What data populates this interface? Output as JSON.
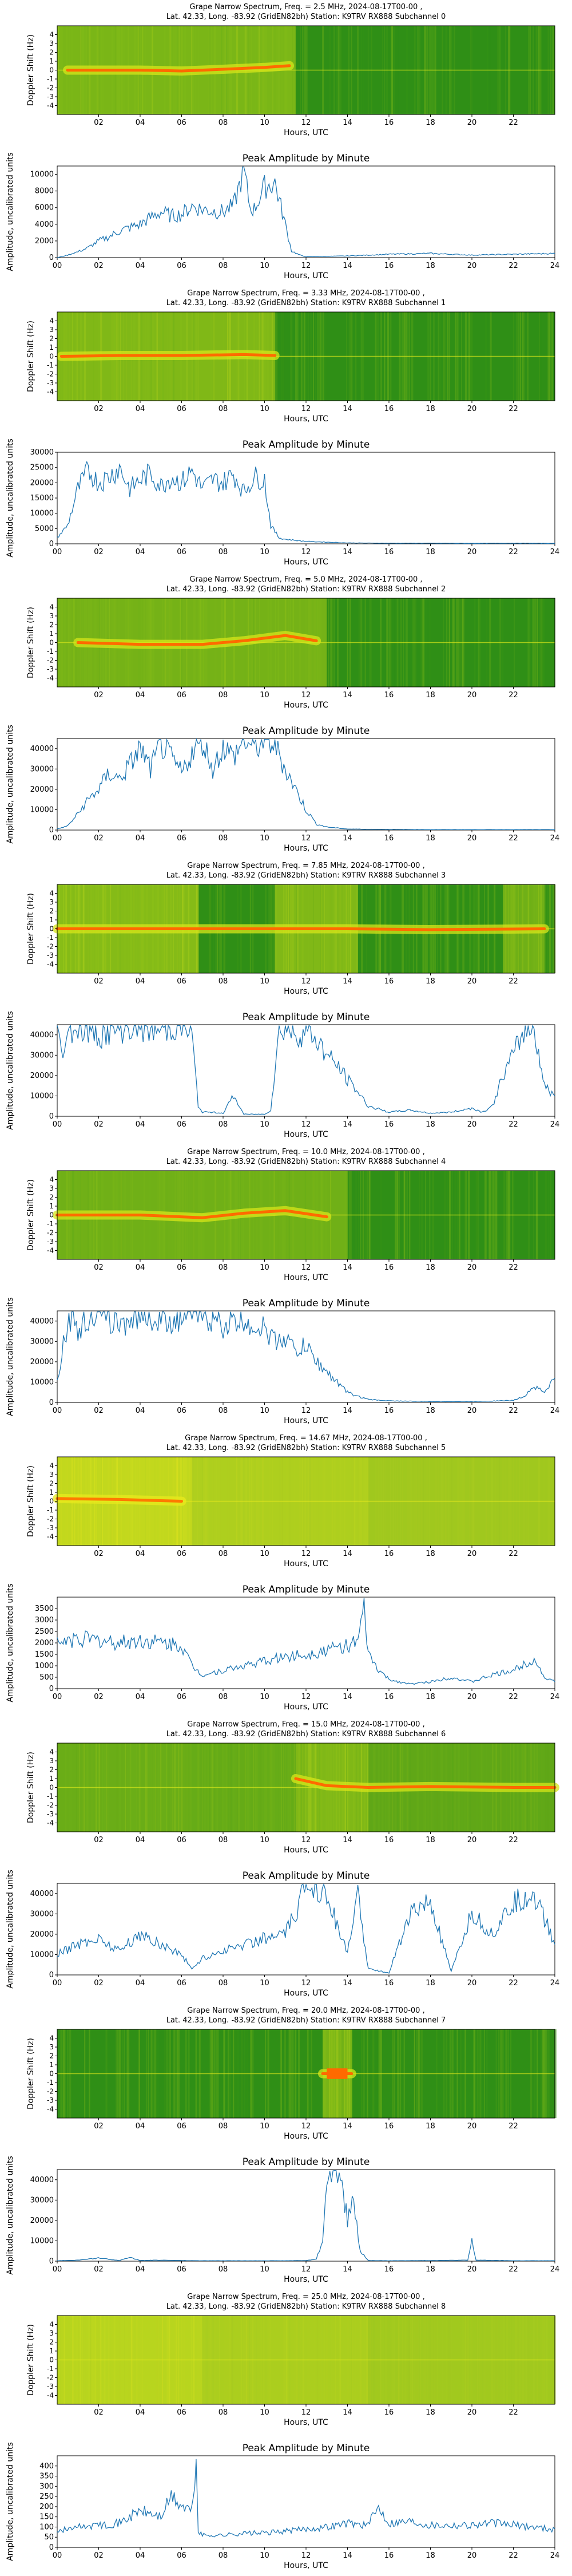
{
  "page": {
    "title_line2": "Lat.  42.33, Long. -83.92 (GridEN82bh) Station: K9TRV RX888 Subchannel",
    "spectrum_ylabel": "Doppler Shift (Hz)",
    "spectrum_xlabel": "Hours, UTC",
    "amp_title": "Peak Amplitude by Minute",
    "amp_ylabel": "Amplitude, uncalibrated units",
    "amp_xlabel": "Hours, UTC",
    "spectrum_xticks": [
      "02",
      "04",
      "06",
      "08",
      "10",
      "12",
      "14",
      "16",
      "18",
      "20",
      "22"
    ],
    "spectrum_yticks": [
      "4",
      "3",
      "2",
      "1",
      "0",
      "-1",
      "-2",
      "-3",
      "-4"
    ],
    "amp_xticks": [
      "00",
      "02",
      "04",
      "06",
      "08",
      "10",
      "12",
      "14",
      "16",
      "18",
      "20",
      "22",
      "24"
    ]
  },
  "channels": [
    {
      "title_line1": "Grape Narrow Spectrum, Freq. = 2.5 MHz, 2024-08-17T00-00 ,",
      "subchannel": "0",
      "colors": {
        "bg": "#2f8f16",
        "bright": "#d7e61a",
        "hot": "#ff6a00"
      },
      "spectrum": {
        "bands": [
          {
            "start": 0.0,
            "end": 11.5,
            "intensity": 0.7
          }
        ],
        "trace": [
          [
            0.5,
            0.0
          ],
          [
            2,
            0.0
          ],
          [
            4,
            0.0
          ],
          [
            6,
            -0.1
          ],
          [
            8,
            0.1
          ],
          [
            10,
            0.3
          ],
          [
            11.2,
            0.5
          ]
        ],
        "bright_blocks": []
      }
    },
    {
      "title_line1": "Grape Narrow Spectrum, Freq. = 3.33 MHz, 2024-08-17T00-00 ,",
      "subchannel": "1",
      "colors": {
        "bg": "#2f8f16",
        "bright": "#d7e61a",
        "hot": "#ff6a00"
      },
      "spectrum": {
        "bands": [
          {
            "start": 0.0,
            "end": 10.5,
            "intensity": 0.75
          }
        ],
        "trace": [
          [
            0.2,
            0.0
          ],
          [
            3,
            0.1
          ],
          [
            6,
            0.1
          ],
          [
            9,
            0.2
          ],
          [
            10.5,
            0.1
          ]
        ],
        "bright_blocks": []
      }
    },
    {
      "title_line1": "Grape Narrow Spectrum, Freq. = 5.0 MHz, 2024-08-17T00-00 ,",
      "subchannel": "2",
      "colors": {
        "bg": "#2f8f16",
        "bright": "#d7e61a",
        "hot": "#ff6a00"
      },
      "spectrum": {
        "bands": [
          {
            "start": 0.0,
            "end": 13.0,
            "intensity": 0.65
          }
        ],
        "trace": [
          [
            1,
            0.0
          ],
          [
            4,
            -0.2
          ],
          [
            7,
            -0.2
          ],
          [
            9,
            0.2
          ],
          [
            11,
            0.8
          ],
          [
            12.5,
            0.2
          ]
        ],
        "bright_blocks": []
      }
    },
    {
      "title_line1": "Grape Narrow Spectrum, Freq. = 7.85 MHz, 2024-08-17T00-00 ,",
      "subchannel": "3",
      "colors": {
        "bg": "#2f8f16",
        "bright": "#d7e61a",
        "hot": "#ff6a00"
      },
      "spectrum": {
        "bands": [
          {
            "start": 0.0,
            "end": 6.8,
            "intensity": 0.8
          },
          {
            "start": 10.5,
            "end": 14.5,
            "intensity": 0.75
          },
          {
            "start": 21.5,
            "end": 23.5,
            "intensity": 0.6
          }
        ],
        "trace": [
          [
            0,
            0.0
          ],
          [
            6.8,
            0.0
          ],
          [
            10.7,
            0.0
          ],
          [
            14,
            0.0
          ],
          [
            18,
            -0.1
          ],
          [
            23.5,
            0.0
          ]
        ],
        "bright_blocks": []
      }
    },
    {
      "title_line1": "Grape Narrow Spectrum, Freq. = 10.0 MHz, 2024-08-17T00-00 ,",
      "subchannel": "4",
      "colors": {
        "bg": "#2f8f16",
        "bright": "#d7e61a",
        "hot": "#ff6a00"
      },
      "spectrum": {
        "bands": [
          {
            "start": 0.0,
            "end": 14.0,
            "intensity": 0.6
          }
        ],
        "trace": [
          [
            0,
            0.0
          ],
          [
            4,
            0.0
          ],
          [
            7,
            -0.3
          ],
          [
            9,
            0.2
          ],
          [
            11,
            0.5
          ],
          [
            13,
            -0.2
          ]
        ],
        "bright_blocks": []
      }
    },
    {
      "title_line1": "Grape Narrow Spectrum, Freq. = 14.67 MHz, 2024-08-17T00-00 ,",
      "subchannel": "5",
      "colors": {
        "bg": "#8fbf20",
        "bright": "#e8ea1c",
        "hot": "#ff7a00"
      },
      "spectrum": {
        "bands": [
          {
            "start": 0.0,
            "end": 6.5,
            "intensity": 0.9
          },
          {
            "start": 6.5,
            "end": 15.0,
            "intensity": 0.55
          },
          {
            "start": 15.0,
            "end": 24.0,
            "intensity": 0.3
          }
        ],
        "trace": [
          [
            0,
            0.3
          ],
          [
            3,
            0.2
          ],
          [
            6,
            0.0
          ]
        ],
        "bright_blocks": []
      }
    },
    {
      "title_line1": "Grape Narrow Spectrum, Freq. = 15.0 MHz, 2024-08-17T00-00 ,",
      "subchannel": "6",
      "colors": {
        "bg": "#2f8f16",
        "bright": "#d7e61a",
        "hot": "#ff6a00"
      },
      "spectrum": {
        "bands": [
          {
            "start": 0.0,
            "end": 6.5,
            "intensity": 0.55
          },
          {
            "start": 6.5,
            "end": 11.5,
            "intensity": 0.5
          },
          {
            "start": 11.5,
            "end": 15.0,
            "intensity": 0.75
          },
          {
            "start": 15.0,
            "end": 24.0,
            "intensity": 0.45
          }
        ],
        "trace": [
          [
            11.5,
            1.0
          ],
          [
            13,
            0.2
          ],
          [
            15,
            0.0
          ],
          [
            18,
            0.1
          ],
          [
            22,
            0.0
          ],
          [
            24,
            0.0
          ]
        ],
        "bright_blocks": []
      }
    },
    {
      "title_line1": "Grape Narrow Spectrum, Freq. = 20.0 MHz, 2024-08-17T00-00 ,",
      "subchannel": "7",
      "colors": {
        "bg": "#2f8f16",
        "bright": "#d7e61a",
        "hot": "#ff6a00"
      },
      "spectrum": {
        "bands": [
          {
            "start": 12.8,
            "end": 14.2,
            "intensity": 0.7
          }
        ],
        "trace": [
          [
            12.8,
            0.0
          ],
          [
            14.2,
            0.0
          ]
        ],
        "bright_blocks": [
          {
            "start": 13.0,
            "end": 14.0
          }
        ]
      }
    },
    {
      "title_line1": "Grape Narrow Spectrum, Freq. = 25.0 MHz, 2024-08-17T00-00 ,",
      "subchannel": "8",
      "colors": {
        "bg": "#8fbf20",
        "bright": "#dfe81c",
        "hot": "#ff7a00"
      },
      "spectrum": {
        "bands": [
          {
            "start": 0.0,
            "end": 7.0,
            "intensity": 0.8
          },
          {
            "start": 7.0,
            "end": 15.0,
            "intensity": 0.55
          },
          {
            "start": 15.0,
            "end": 24.0,
            "intensity": 0.35
          }
        ],
        "trace": [],
        "bright_blocks": []
      }
    }
  ],
  "chart_data": [
    {
      "type": "line",
      "title": "Peak Amplitude by Minute",
      "xlabel": "Hours, UTC",
      "ylabel": "Amplitude, uncalibrated units",
      "xlim": [
        0,
        24
      ],
      "ylim": [
        0,
        11000
      ],
      "yticks": [
        0,
        2000,
        4000,
        6000,
        8000,
        10000
      ],
      "x": [
        0,
        0.5,
        1,
        1.5,
        2,
        2.5,
        3,
        3.5,
        4,
        4.5,
        5,
        5.5,
        6,
        6.5,
        7,
        7.5,
        8,
        8.5,
        9,
        9.3,
        9.5,
        10,
        10.5,
        11,
        11.3,
        11.7,
        12,
        14,
        16,
        18,
        20,
        22,
        24
      ],
      "values": [
        0,
        300,
        700,
        1200,
        2000,
        2500,
        3200,
        3600,
        4000,
        4800,
        5500,
        5000,
        5200,
        6200,
        5800,
        5600,
        5500,
        6200,
        10500,
        6000,
        5800,
        8500,
        9000,
        4000,
        800,
        300,
        100,
        200,
        400,
        500,
        300,
        400,
        500
      ]
    },
    {
      "type": "line",
      "title": "Peak Amplitude by Minute",
      "xlabel": "Hours, UTC",
      "ylabel": "Amplitude, uncalibrated units",
      "xlim": [
        0,
        24
      ],
      "ylim": [
        0,
        30000
      ],
      "yticks": [
        0,
        5000,
        10000,
        15000,
        20000,
        25000,
        30000
      ],
      "x": [
        0,
        0.5,
        1,
        1.5,
        2,
        2.5,
        3,
        3.5,
        4,
        4.5,
        5,
        5.5,
        6,
        6.5,
        7,
        7.5,
        8,
        8.5,
        9,
        9.5,
        10,
        10.3,
        10.7,
        11,
        12,
        14,
        16,
        18,
        20,
        22,
        24
      ],
      "values": [
        2000,
        6000,
        18000,
        24000,
        20000,
        22000,
        25000,
        18000,
        21000,
        23000,
        19000,
        22000,
        20000,
        24000,
        18000,
        21000,
        20000,
        23000,
        17000,
        22000,
        21000,
        6000,
        2000,
        1500,
        800,
        300,
        200,
        200,
        150,
        200,
        150
      ]
    },
    {
      "type": "line",
      "title": "Peak Amplitude by Minute",
      "xlabel": "Hours, UTC",
      "ylabel": "Amplitude, uncalibrated units",
      "xlim": [
        0,
        24
      ],
      "ylim": [
        0,
        45000
      ],
      "yticks": [
        0,
        10000,
        20000,
        30000,
        40000
      ],
      "x": [
        0,
        0.5,
        1,
        1.5,
        2,
        2.5,
        3,
        3.5,
        4,
        4.5,
        5,
        5.5,
        6,
        6.5,
        7,
        7.5,
        8,
        8.5,
        9,
        9.5,
        10,
        10.5,
        11,
        11.5,
        12,
        12.5,
        13,
        14,
        16,
        18,
        20,
        22,
        24
      ],
      "values": [
        500,
        2000,
        8000,
        15000,
        20000,
        28000,
        25000,
        32000,
        40000,
        30000,
        42000,
        35000,
        28000,
        38000,
        44000,
        30000,
        41000,
        36000,
        44000,
        40000,
        44000,
        42000,
        30000,
        20000,
        10000,
        3000,
        1500,
        500,
        300,
        200,
        200,
        200,
        200
      ]
    },
    {
      "type": "line",
      "title": "Peak Amplitude by Minute",
      "xlabel": "Hours, UTC",
      "ylabel": "Amplitude, uncalibrated units",
      "xlim": [
        0,
        24
      ],
      "ylim": [
        0,
        45000
      ],
      "yticks": [
        0,
        10000,
        20000,
        30000,
        40000
      ],
      "x": [
        0,
        0.2,
        0.5,
        1,
        2,
        3,
        4,
        5,
        5.5,
        6,
        6.5,
        6.8,
        7,
        7.5,
        8,
        8.5,
        9,
        10,
        10.3,
        10.7,
        11,
        11.5,
        12,
        12.5,
        13,
        13.5,
        14,
        14.5,
        15,
        16,
        17,
        18,
        19,
        20,
        20.5,
        21,
        21.5,
        22,
        22.5,
        23,
        23.5,
        24
      ],
      "values": [
        44000,
        30000,
        42000,
        44000,
        40000,
        43000,
        44000,
        42000,
        44000,
        44000,
        40000,
        5000,
        2000,
        2000,
        1500,
        10000,
        1000,
        1000,
        3000,
        42000,
        44000,
        40000,
        42000,
        38000,
        30000,
        25000,
        18000,
        12000,
        5000,
        2000,
        3000,
        1500,
        2000,
        4000,
        2000,
        5000,
        20000,
        30000,
        42000,
        44000,
        15000,
        10000
      ]
    },
    {
      "type": "line",
      "title": "Peak Amplitude by Minute",
      "xlabel": "Hours, UTC",
      "ylabel": "Amplitude, uncalibrated units",
      "xlim": [
        0,
        24
      ],
      "ylim": [
        0,
        45000
      ],
      "yticks": [
        0,
        10000,
        20000,
        30000,
        40000
      ],
      "x": [
        0,
        0.3,
        0.7,
        1,
        1.5,
        2,
        3,
        4,
        5,
        6,
        7,
        8,
        9,
        10,
        10.5,
        11,
        11.5,
        12,
        12.5,
        13,
        13.5,
        14,
        14.5,
        15,
        16,
        18,
        20,
        22,
        22.5,
        23,
        23.5,
        24
      ],
      "values": [
        10000,
        30000,
        44000,
        35000,
        42000,
        44000,
        38000,
        44000,
        40000,
        42000,
        44000,
        38000,
        40000,
        36000,
        30000,
        32000,
        25000,
        28000,
        20000,
        15000,
        10000,
        5000,
        3000,
        1500,
        800,
        500,
        500,
        1000,
        3000,
        8000,
        5000,
        12000
      ]
    },
    {
      "type": "line",
      "title": "Peak Amplitude by Minute",
      "xlabel": "Hours, UTC",
      "ylabel": "Amplitude, uncalibrated units",
      "xlim": [
        0,
        24
      ],
      "ylim": [
        0,
        4000
      ],
      "yticks": [
        0,
        500,
        1000,
        1500,
        2000,
        2500,
        3000,
        3500
      ],
      "x": [
        0,
        1,
        2,
        3,
        4,
        5,
        6,
        6.5,
        7,
        7.5,
        8,
        9,
        10,
        11,
        12,
        13,
        14,
        14.5,
        14.8,
        15,
        15.5,
        16,
        17,
        18,
        19,
        20,
        21,
        22,
        23,
        23.5,
        24
      ],
      "values": [
        2000,
        2200,
        2100,
        2000,
        2100,
        2000,
        1900,
        1000,
        600,
        700,
        800,
        1000,
        1200,
        1400,
        1500,
        1700,
        1900,
        2000,
        3500,
        1500,
        800,
        400,
        200,
        300,
        500,
        300,
        600,
        800,
        1300,
        500,
        300
      ]
    },
    {
      "type": "line",
      "title": "Peak Amplitude by Minute",
      "xlabel": "Hours, UTC",
      "ylabel": "Amplitude, uncalibrated units",
      "xlim": [
        0,
        24
      ],
      "ylim": [
        0,
        45000
      ],
      "yticks": [
        0,
        10000,
        20000,
        30000,
        40000
      ],
      "x": [
        0,
        1,
        2,
        3,
        4,
        5,
        6,
        6.5,
        7,
        8,
        9,
        10,
        11,
        11.5,
        12,
        12.5,
        13,
        13.5,
        14,
        14.5,
        15,
        15.5,
        16,
        17,
        18,
        19,
        20,
        21,
        22,
        23,
        24
      ],
      "values": [
        10000,
        15000,
        18000,
        12000,
        20000,
        15000,
        10000,
        3000,
        8000,
        12000,
        15000,
        18000,
        20000,
        30000,
        44000,
        44000,
        40000,
        25000,
        10000,
        40000,
        3000,
        2000,
        1000,
        30000,
        35000,
        1500,
        30000,
        20000,
        35000,
        40000,
        15000
      ]
    },
    {
      "type": "line",
      "title": "Peak Amplitude by Minute",
      "xlabel": "Hours, UTC",
      "ylabel": "Amplitude, uncalibrated units",
      "xlim": [
        0,
        24
      ],
      "ylim": [
        0,
        45000
      ],
      "yticks": [
        0,
        10000,
        20000,
        30000,
        40000
      ],
      "x": [
        0,
        1,
        2,
        3,
        3.5,
        4,
        5,
        6,
        7,
        8,
        9,
        10,
        11,
        12,
        12.5,
        12.8,
        13,
        13.3,
        13.6,
        14,
        14.3,
        14.6,
        15,
        16,
        18,
        19.8,
        20,
        20.2,
        22,
        24
      ],
      "values": [
        200,
        500,
        1500,
        300,
        2000,
        300,
        500,
        300,
        200,
        200,
        200,
        200,
        200,
        300,
        1000,
        10000,
        44000,
        40000,
        45000,
        20000,
        30000,
        5000,
        300,
        200,
        300,
        500,
        10000,
        500,
        200,
        200
      ]
    },
    {
      "type": "line",
      "title": "Peak Amplitude by Minute",
      "xlabel": "Hours, UTC",
      "ylabel": "Amplitude, uncalibrated units",
      "xlim": [
        0,
        24
      ],
      "ylim": [
        0,
        450
      ],
      "yticks": [
        0,
        50,
        100,
        150,
        200,
        250,
        300,
        350,
        400
      ],
      "x": [
        0,
        1,
        2,
        3,
        4,
        5,
        5.5,
        6,
        6.5,
        6.7,
        6.8,
        7,
        8,
        9,
        10,
        11,
        12,
        13,
        14,
        15,
        15.5,
        16,
        17,
        18,
        19,
        20,
        21,
        22,
        23,
        24
      ],
      "values": [
        80,
        100,
        110,
        120,
        180,
        150,
        250,
        200,
        180,
        420,
        80,
        60,
        60,
        70,
        70,
        80,
        90,
        100,
        120,
        110,
        200,
        120,
        130,
        110,
        110,
        110,
        120,
        110,
        100,
        90
      ]
    }
  ]
}
